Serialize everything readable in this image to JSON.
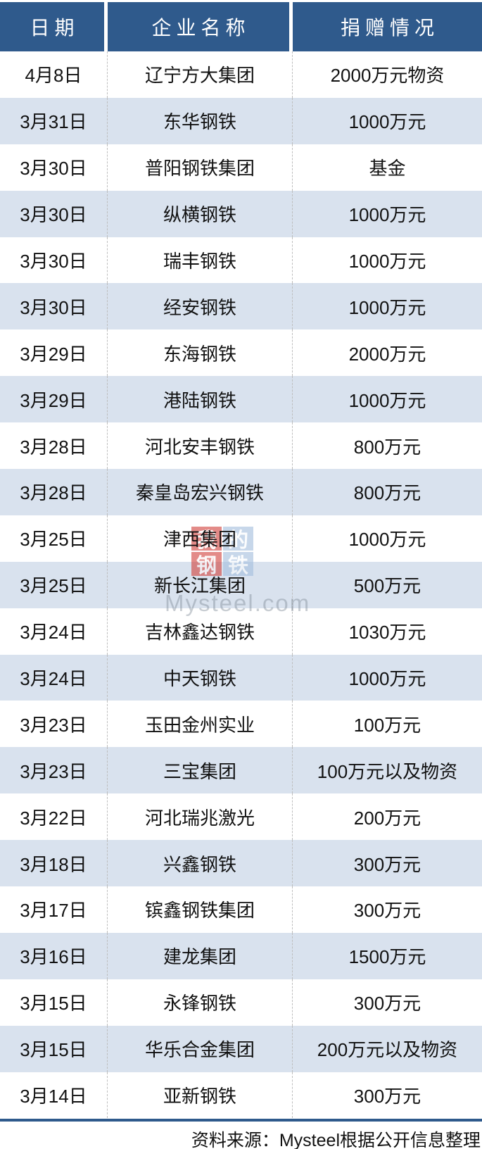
{
  "chart_data": {
    "type": "table",
    "columns": [
      "日期",
      "企业名称",
      "捐赠情况"
    ],
    "rows": [
      [
        "4月8日",
        "辽宁方大集团",
        "2000万元物资"
      ],
      [
        "3月31日",
        "东华钢铁",
        "1000万元"
      ],
      [
        "3月30日",
        "普阳钢铁集团",
        "基金"
      ],
      [
        "3月30日",
        "纵横钢铁",
        "1000万元"
      ],
      [
        "3月30日",
        "瑞丰钢铁",
        "1000万元"
      ],
      [
        "3月30日",
        "经安钢铁",
        "1000万元"
      ],
      [
        "3月29日",
        "东海钢铁",
        "2000万元"
      ],
      [
        "3月29日",
        "港陆钢铁",
        "1000万元"
      ],
      [
        "3月28日",
        "河北安丰钢铁",
        "800万元"
      ],
      [
        "3月28日",
        "秦皇岛宏兴钢铁",
        "800万元"
      ],
      [
        "3月25日",
        "津西集团",
        "1000万元"
      ],
      [
        "3月25日",
        "新长江集团",
        "500万元"
      ],
      [
        "3月24日",
        "吉林鑫达钢铁",
        "1030万元"
      ],
      [
        "3月24日",
        "中天钢铁",
        "1000万元"
      ],
      [
        "3月23日",
        "玉田金州实业",
        "100万元"
      ],
      [
        "3月23日",
        "三宝集团",
        "100万元以及物资"
      ],
      [
        "3月22日",
        "河北瑞兆激光",
        "200万元"
      ],
      [
        "3月18日",
        "兴鑫钢铁",
        "300万元"
      ],
      [
        "3月17日",
        "镔鑫钢铁集团",
        "300万元"
      ],
      [
        "3月16日",
        "建龙集团",
        "1500万元"
      ],
      [
        "3月15日",
        "永锋钢铁",
        "300万元"
      ],
      [
        "3月15日",
        "华乐合金集团",
        "200万元以及物资"
      ],
      [
        "3月14日",
        "亚新钢铁",
        "300万元"
      ]
    ],
    "legend_position": "none",
    "grid": "dashed-vertical-separators"
  },
  "watermark": {
    "logo_chars": [
      "我",
      "的",
      "钢",
      "铁"
    ],
    "site_text": "Mysteel.com"
  },
  "footer": {
    "source_text": "资料来源：Mysteel根据公开信息整理"
  },
  "colors": {
    "header_bg": "#2F5A8C",
    "header_text": "#FFFFFF",
    "row_alt_bg": "#D9E2EE",
    "row_bg": "#FFFFFF",
    "body_text": "#111111",
    "column_divider": "#BDBDBD",
    "footer_rule": "#2F5A8C",
    "watermark_red": "#D24540",
    "watermark_blue": "#A5C0DE",
    "watermark_text_gray": "#7D8794"
  }
}
